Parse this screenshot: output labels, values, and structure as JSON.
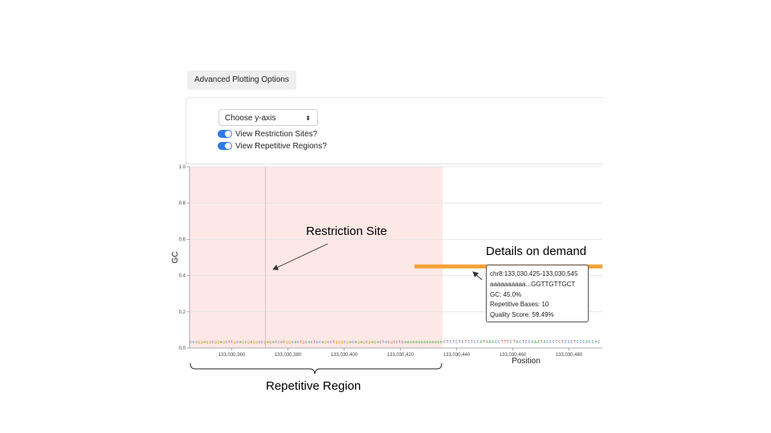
{
  "toolbar": {
    "advanced_label": "Advanced Plotting Options"
  },
  "controls": {
    "yaxis_label": "Choose y-axis",
    "toggles": [
      {
        "label": "View Restriction Sites?",
        "on": true
      },
      {
        "label": "View Repetitive Regions?",
        "on": true
      }
    ]
  },
  "colors": {
    "repetitive": "#fde8e6",
    "gc_bar": "#f4a23a",
    "restriction": "#d8c4c4",
    "toggle_on": "#2f7be6"
  },
  "chart_data": {
    "type": "line",
    "ylabel": "GC",
    "xlabel": "Position",
    "ylim": [
      0,
      1
    ],
    "y_ticks": [
      "0.0",
      "0.2",
      "0.4",
      "0.6",
      "0.8",
      "1.0"
    ],
    "x_ticks": [
      "133,030,360",
      "133,030,380",
      "133,030,400",
      "133,030,420",
      "133,030,440",
      "133,030,460",
      "133,030,480"
    ],
    "repetitive_region": {
      "start": 133030345,
      "end": 133030435
    },
    "restriction_site": 133030372,
    "gc_segments": [
      {
        "start": 133030425,
        "end": 133030545,
        "gc": 0.45
      }
    ],
    "sequence_lowercase": "ccaggaggcggagcttgcagcgaggccgagatcatggcactgcactccagcctgggcgacagagcgagactccgtctcaaaaaaaaaaaaaa",
    "sequence_uppercase": "CTCTCTCTCTCCATAAACCTTTCTACTCCAAATACCCTCTCCCTCCCACCAC"
  },
  "tooltip": {
    "lines": [
      "chr8:133,030,425-133,030,545",
      "aaaaaaaaaa...GGTTGTTGCT",
      "GC: 45.0%",
      "Repetitive Bases: 10",
      "Quality Score: 59.49%"
    ]
  },
  "annotations": {
    "restriction_site": "Restriction Site",
    "details": "Details on demand",
    "repetitive_region": "Repetitive Region"
  }
}
